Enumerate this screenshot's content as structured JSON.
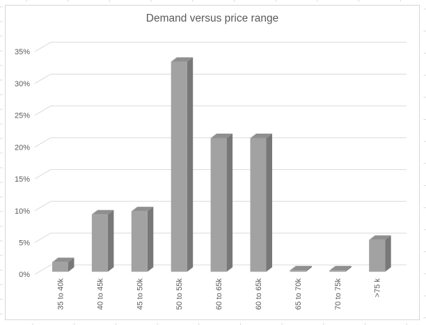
{
  "chart_data": {
    "type": "bar",
    "style": "3d-column",
    "title": "Demand versus price range",
    "categories": [
      "35 to 40k",
      "40 to 45k",
      "45 to 50k",
      "50 to 55k",
      "60 to 65k",
      "60 to 65k",
      "65 to 70k",
      "70 to 75k",
      ">75 k"
    ],
    "values": [
      1.5,
      9,
      9.5,
      33,
      21,
      21,
      0.2,
      0.2,
      5
    ],
    "unit": "%",
    "xlabel": "",
    "ylabel": "",
    "ylim": [
      0,
      35
    ],
    "ytick_step": 5,
    "ytick_labels": [
      "0%",
      "5%",
      "10%",
      "15%",
      "20%",
      "25%",
      "30%",
      "35%"
    ],
    "grid": true,
    "legend": false,
    "colors": {
      "bar_front": "#a2a2a2",
      "bar_side": "#787878",
      "bar_top": "#8f8f8f",
      "bar_bevel": "#c2c2c2",
      "gridline": "#d9d9d9",
      "chart_border": "#d6d6d6",
      "text": "#595959",
      "background": "#ffffff"
    }
  }
}
